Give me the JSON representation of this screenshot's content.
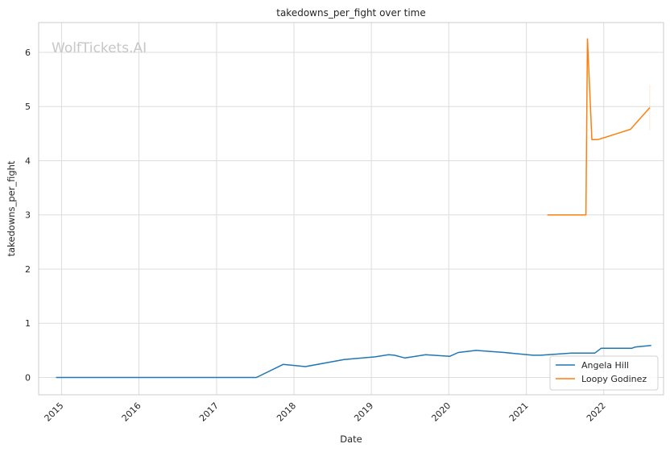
{
  "watermark": "WolfTickets.AI",
  "chart_data": {
    "type": "line",
    "title": "takedowns_per_fight over time",
    "xlabel": "Date",
    "ylabel": "takedowns_per_fight",
    "xlim": [
      "2014-09-15",
      "2022-10-10"
    ],
    "ylim": [
      -0.32,
      6.55
    ],
    "x_ticks": [
      {
        "label": "2015",
        "date": "2015-01-01"
      },
      {
        "label": "2016",
        "date": "2016-01-01"
      },
      {
        "label": "2017",
        "date": "2017-01-01"
      },
      {
        "label": "2018",
        "date": "2018-01-01"
      },
      {
        "label": "2019",
        "date": "2019-01-01"
      },
      {
        "label": "2020",
        "date": "2020-01-01"
      },
      {
        "label": "2021",
        "date": "2021-01-01"
      },
      {
        "label": "2022",
        "date": "2022-01-01"
      }
    ],
    "y_ticks": [
      0,
      1,
      2,
      3,
      4,
      5,
      6
    ],
    "grid": true,
    "legend_position": "lower-right",
    "series": [
      {
        "name": "Angela Hill",
        "color": "#1f77b4",
        "points": [
          {
            "x": "2014-12-06",
            "y": 0
          },
          {
            "x": "2016-05-01",
            "y": 0
          },
          {
            "x": "2017-07-08",
            "y": 0
          },
          {
            "x": "2017-11-11",
            "y": 0.24
          },
          {
            "x": "2018-02-24",
            "y": 0.2
          },
          {
            "x": "2018-08-25",
            "y": 0.33
          },
          {
            "x": "2019-01-19",
            "y": 0.38
          },
          {
            "x": "2019-03-23",
            "y": 0.42
          },
          {
            "x": "2019-04-20",
            "y": 0.41
          },
          {
            "x": "2019-06-08",
            "y": 0.36
          },
          {
            "x": "2019-09-14",
            "y": 0.42
          },
          {
            "x": "2020-01-05",
            "y": 0.39
          },
          {
            "x": "2020-02-15",
            "y": 0.46
          },
          {
            "x": "2020-05-09",
            "y": 0.5
          },
          {
            "x": "2020-09-19",
            "y": 0.46
          },
          {
            "x": "2021-02-01",
            "y": 0.41
          },
          {
            "x": "2021-03-10",
            "y": 0.41
          },
          {
            "x": "2021-08-01",
            "y": 0.45
          },
          {
            "x": "2021-11-20",
            "y": 0.45
          },
          {
            "x": "2021-12-20",
            "y": 0.54
          },
          {
            "x": "2022-05-14",
            "y": 0.54
          },
          {
            "x": "2022-05-28",
            "y": 0.56
          },
          {
            "x": "2022-08-13",
            "y": 0.59
          }
        ]
      },
      {
        "name": "Loopy Godinez",
        "color": "#ff7f0e",
        "points": [
          {
            "x": "2021-04-10",
            "y": 3.0
          },
          {
            "x": "2021-10-09",
            "y": 3.0
          },
          {
            "x": "2021-10-16",
            "y": 6.25
          },
          {
            "x": "2021-11-06",
            "y": 4.39
          },
          {
            "x": "2021-12-04",
            "y": 4.39
          },
          {
            "x": "2022-05-07",
            "y": 4.58
          },
          {
            "x": "2022-08-06",
            "y": 4.98
          }
        ]
      }
    ]
  }
}
